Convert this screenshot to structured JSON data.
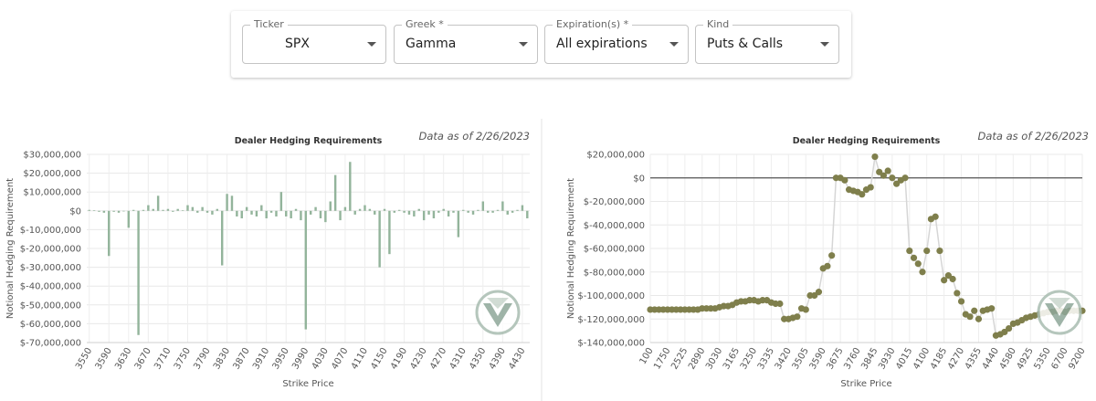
{
  "controls": [
    {
      "label": "Ticker",
      "value": "SPX"
    },
    {
      "label": "Greek *",
      "value": "Gamma"
    },
    {
      "label": "Expiration(s) *",
      "value": "All expirations"
    },
    {
      "label": "Kind",
      "value": "Puts & Calls"
    }
  ],
  "chart_data": [
    {
      "type": "bar",
      "title": "Dealer Hedging Requirements",
      "subtitle": "Data as of 2/26/2023",
      "x_label": "Strike Price",
      "y_label": "Notional Hedging Requirement",
      "color": "#93b49b",
      "grid": true,
      "categories": [
        3550,
        null,
        null,
        null,
        3590,
        null,
        null,
        null,
        3630,
        null,
        null,
        null,
        3670,
        null,
        null,
        null,
        3710,
        null,
        null,
        null,
        3750,
        null,
        null,
        null,
        3790,
        null,
        null,
        null,
        3830,
        null,
        null,
        null,
        3870,
        null,
        null,
        null,
        3910,
        null,
        null,
        null,
        3950,
        null,
        null,
        null,
        3990,
        null,
        null,
        null,
        4030,
        null,
        null,
        null,
        4070,
        null,
        null,
        null,
        4110,
        null,
        null,
        null,
        4150,
        null,
        null,
        null,
        4190,
        null,
        null,
        null,
        4230,
        null,
        null,
        null,
        4270,
        null,
        null,
        null,
        4310,
        null,
        null,
        null,
        4350,
        null,
        null,
        null,
        4390,
        null,
        null,
        null,
        4430,
        null
      ],
      "values": [
        500000,
        300000,
        -500000,
        -1000000,
        -24000000,
        -500000,
        -1000000,
        -300000,
        -9000000,
        500000,
        -66000000,
        500000,
        3000000,
        1000000,
        8000000,
        500000,
        1000000,
        -500000,
        1000000,
        300000,
        3000000,
        2000000,
        -1000000,
        2000000,
        -1000000,
        -2000000,
        1000000,
        -29000000,
        9000000,
        8000000,
        -3000000,
        -4000000,
        2000000,
        -2000000,
        -3000000,
        3000000,
        -4000000,
        -1000000,
        -3000000,
        10000000,
        -3000000,
        -4000000,
        1000000,
        -5000000,
        -63000000,
        -2000000,
        2000000,
        -4000000,
        -6000000,
        5000000,
        19000000,
        -5000000,
        2000000,
        26000000,
        -2000000,
        1000000,
        3000000,
        1000000,
        -2000000,
        -30000000,
        1000000,
        -23000000,
        -1000000,
        500000,
        -1000000,
        -2000000,
        -3000000,
        1000000,
        -5000000,
        -2000000,
        -4000000,
        -1000000,
        1000000,
        -3000000,
        -1000000,
        -14000000,
        500000,
        -1000000,
        -2000000,
        500000,
        5000000,
        -1000000,
        -1000000,
        500000,
        5000000,
        -2000000,
        -1000000,
        500000,
        3000000,
        -4000000
      ],
      "ylim": [
        -70000000,
        30000000
      ],
      "yticks": [
        {
          "value": 30000000,
          "label": "$30,000,000"
        },
        {
          "value": 20000000,
          "label": "$20,000,000"
        },
        {
          "value": 10000000,
          "label": "$10,000,000"
        },
        {
          "value": 0,
          "label": "$0"
        },
        {
          "value": -10000000,
          "label": "$-10,000,000"
        },
        {
          "value": -20000000,
          "label": "$-20,000,000"
        },
        {
          "value": -30000000,
          "label": "$-30,000,000"
        },
        {
          "value": -40000000,
          "label": "$-40,000,000"
        },
        {
          "value": -50000000,
          "label": "$-50,000,000"
        },
        {
          "value": -60000000,
          "label": "$-60,000,000"
        },
        {
          "value": -70000000,
          "label": "$-70,000,000"
        }
      ]
    },
    {
      "type": "line",
      "title": "Dealer Hedging Requirements",
      "subtitle": "Data as of 2/26/2023",
      "x_label": "Strike Price",
      "y_label": "Notional Hedging Requirement",
      "color": "#7f7f4c",
      "line_color": "#d6d6d6",
      "grid": true,
      "zero_line": true,
      "categories": [
        100,
        null,
        null,
        null,
        1750,
        null,
        null,
        null,
        2525,
        null,
        null,
        null,
        2890,
        null,
        null,
        null,
        3030,
        null,
        null,
        null,
        3165,
        null,
        null,
        null,
        3250,
        null,
        null,
        null,
        3335,
        null,
        null,
        null,
        3420,
        null,
        null,
        null,
        3505,
        null,
        null,
        null,
        3590,
        null,
        null,
        null,
        3675,
        null,
        null,
        null,
        3760,
        null,
        null,
        null,
        3845,
        null,
        null,
        null,
        3930,
        null,
        null,
        null,
        4015,
        null,
        null,
        null,
        4100,
        null,
        null,
        null,
        4185,
        null,
        null,
        null,
        4270,
        null,
        null,
        null,
        4355,
        null,
        null,
        null,
        4440,
        null,
        null,
        null,
        4580,
        null,
        null,
        null,
        4925,
        null,
        null,
        null,
        5350,
        null,
        null,
        null,
        6700,
        null,
        null,
        null,
        9200
      ],
      "values": [
        -112000000,
        -112000000,
        -112000000,
        -112000000,
        -112000000,
        -112000000,
        -112000000,
        -112000000,
        -112000000,
        -112000000,
        -112000000,
        -112000000,
        -111000000,
        -111000000,
        -111000000,
        -111000000,
        -110000000,
        -109000000,
        -109000000,
        -108000000,
        -106000000,
        -105000000,
        -105000000,
        -104000000,
        -104000000,
        -105000000,
        -104000000,
        -104000000,
        -106000000,
        -107000000,
        -107000000,
        -120000000,
        -120000000,
        -119000000,
        -118000000,
        -111000000,
        -112000000,
        -100000000,
        -100000000,
        -97000000,
        -77000000,
        -75000000,
        -66000000,
        0,
        0,
        -2000000,
        -10000000,
        -11000000,
        -12000000,
        -14000000,
        -10000000,
        -8000000,
        18000000,
        5000000,
        2000000,
        6000000,
        0,
        -5000000,
        -2000000,
        0,
        -62000000,
        -68000000,
        -73000000,
        -80000000,
        -62000000,
        -35000000,
        -33000000,
        -62000000,
        -87000000,
        -83000000,
        -86000000,
        -98000000,
        -105000000,
        -116000000,
        -118000000,
        -113000000,
        -120000000,
        -113000000,
        -112000000,
        -111000000,
        -134000000,
        -133000000,
        -131000000,
        -128000000,
        -124000000,
        -123000000,
        -121000000,
        -119000000,
        -118000000,
        -117000000,
        -116000000,
        -115000000,
        -114000000,
        -114000000,
        -113000000,
        -113000000,
        -114000000,
        -113000000,
        -113000000,
        -113000000,
        -113000000
      ],
      "ylim": [
        -140000000,
        20000000
      ],
      "yticks": [
        {
          "value": 20000000,
          "label": "$20,000,000"
        },
        {
          "value": 0,
          "label": "$0"
        },
        {
          "value": -20000000,
          "label": "$-20,000,000"
        },
        {
          "value": -40000000,
          "label": "$-40,000,000"
        },
        {
          "value": -60000000,
          "label": "$-60,000,000"
        },
        {
          "value": -80000000,
          "label": "$-80,000,000"
        },
        {
          "value": -100000000,
          "label": "$-100,000,000"
        },
        {
          "value": -120000000,
          "label": "$-120,000,000"
        },
        {
          "value": -140000000,
          "label": "$-140,000,000"
        }
      ]
    }
  ]
}
